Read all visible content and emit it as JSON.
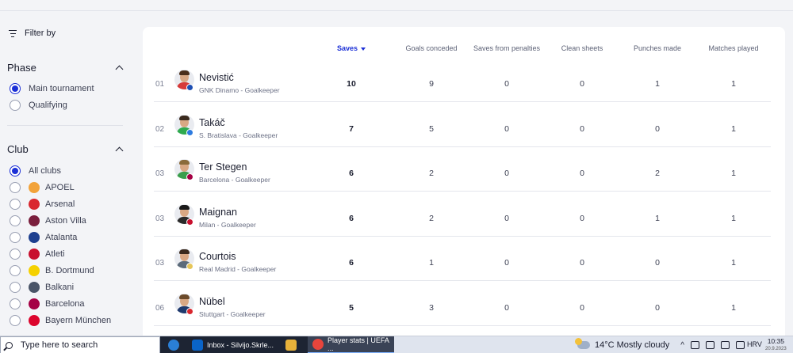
{
  "filter": {
    "label": "Filter by"
  },
  "phase": {
    "title": "Phase",
    "options": [
      {
        "label": "Main tournament",
        "selected": true
      },
      {
        "label": "Qualifying",
        "selected": false
      }
    ]
  },
  "club": {
    "title": "Club",
    "all_label": "All clubs",
    "options": [
      {
        "label": "APOEL",
        "color": "#f2a33a"
      },
      {
        "label": "Arsenal",
        "color": "#d9272e"
      },
      {
        "label": "Aston Villa",
        "color": "#7a1f3d"
      },
      {
        "label": "Atalanta",
        "color": "#1d3f8f"
      },
      {
        "label": "Atleti",
        "color": "#c8102e"
      },
      {
        "label": "B. Dortmund",
        "color": "#f5d100"
      },
      {
        "label": "Balkani",
        "color": "#4a5568"
      },
      {
        "label": "Barcelona",
        "color": "#a50044"
      },
      {
        "label": "Bayern München",
        "color": "#dc052d"
      }
    ]
  },
  "table": {
    "columns": [
      "Saves",
      "Goals conceded",
      "Saves from penalties",
      "Clean sheets",
      "Punches made",
      "Matches played"
    ],
    "rows": [
      {
        "rank": "01",
        "name": "Nevistić",
        "club": "GNK Dinamo - Goalkeeper",
        "stats": [
          "10",
          "9",
          "0",
          "0",
          "1",
          "1"
        ],
        "kit": "#d63a3a",
        "badge": "#1e4fb3",
        "hair": "#4b2e1a"
      },
      {
        "rank": "02",
        "name": "Takáč",
        "club": "S. Bratislava - Goalkeeper",
        "stats": [
          "7",
          "5",
          "0",
          "0",
          "0",
          "1"
        ],
        "kit": "#2faa4f",
        "badge": "#2d7be0",
        "hair": "#3b2a1e"
      },
      {
        "rank": "03",
        "name": "Ter Stegen",
        "club": "Barcelona - Goalkeeper",
        "stats": [
          "6",
          "2",
          "0",
          "0",
          "2",
          "1"
        ],
        "kit": "#3b9e4d",
        "badge": "#a50044",
        "hair": "#8a6a3a"
      },
      {
        "rank": "03",
        "name": "Maignan",
        "club": "Milan - Goalkeeper",
        "stats": [
          "6",
          "2",
          "0",
          "0",
          "1",
          "1"
        ],
        "kit": "#2a2a2a",
        "badge": "#c8102e",
        "hair": "#1a1a1a"
      },
      {
        "rank": "03",
        "name": "Courtois",
        "club": "Real Madrid - Goalkeeper",
        "stats": [
          "6",
          "1",
          "0",
          "0",
          "0",
          "1"
        ],
        "kit": "#5c6b7a",
        "badge": "#e6c65a",
        "hair": "#3b2a1e"
      },
      {
        "rank": "06",
        "name": "Nübel",
        "club": "Stuttgart - Goalkeeper",
        "stats": [
          "5",
          "3",
          "0",
          "0",
          "0",
          "1"
        ],
        "kit": "#1f3a6e",
        "badge": "#d9272e",
        "hair": "#6b4a2a"
      }
    ]
  },
  "taskbar": {
    "search_placeholder": "Type here to search",
    "apps": [
      {
        "label": "Inbox - Silvijo.Skrle...",
        "color": "#0a64c8"
      },
      {
        "label": "Player stats | UEFA ...",
        "color": "#e8453c"
      }
    ],
    "weather": "14°C  Mostly cloudy",
    "language": "HRV",
    "time": "10:35",
    "date": "20.9.2023"
  }
}
